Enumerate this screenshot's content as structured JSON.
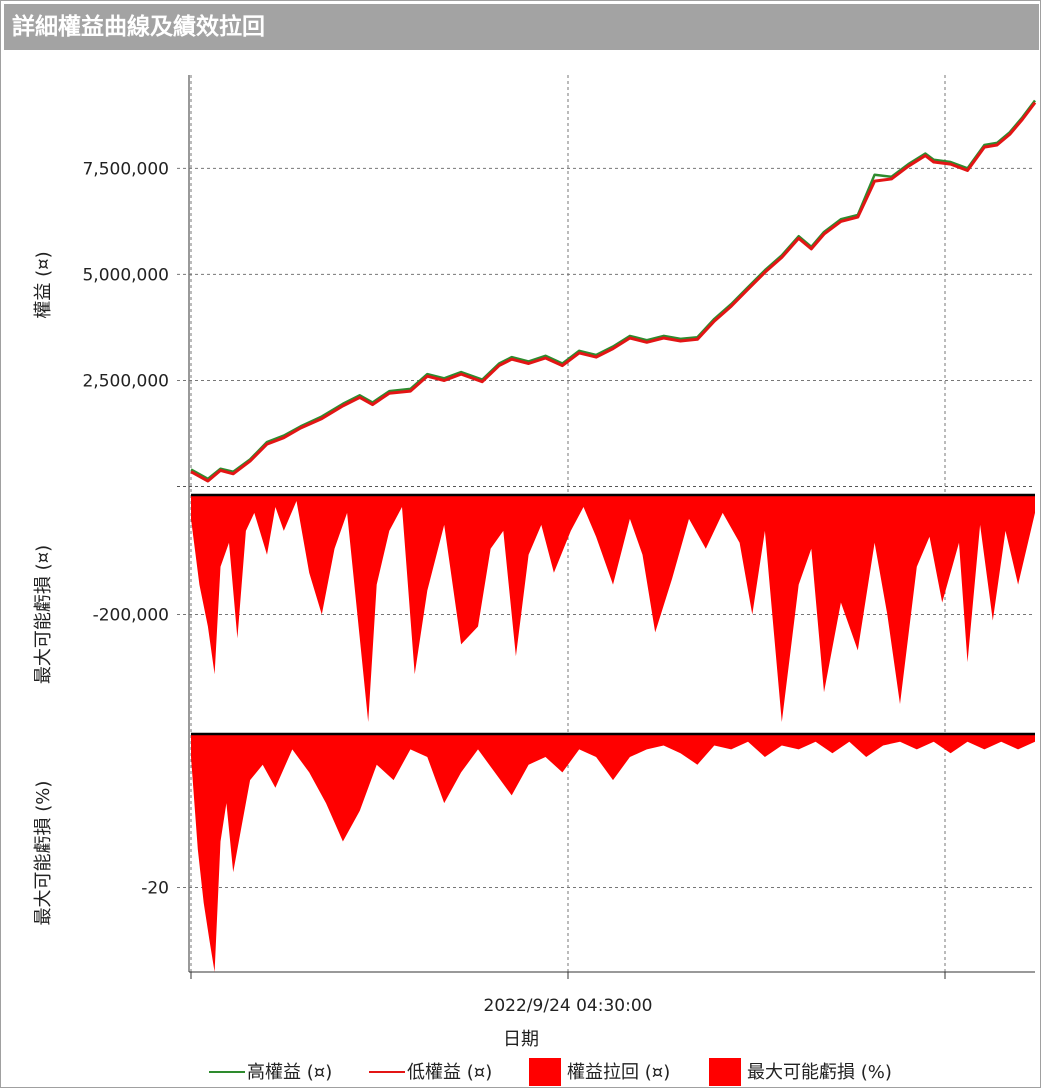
{
  "window": {
    "title": "詳細權益曲線及績效拉回"
  },
  "chart_data": {
    "type": "line",
    "title": "詳細權益曲線及績效拉回",
    "xlabel": "日期",
    "x_tick_labels": [
      "",
      "2022/9/24 04:30:00",
      ""
    ],
    "panels": [
      {
        "name": "equity",
        "type": "line",
        "ylabel": "權益 (¤)",
        "ylim": [
          -200000,
          9700000
        ],
        "ytick_values": [
          2500000,
          5000000,
          7500000
        ],
        "ytick_labels": [
          "2,500,000",
          "5,000,000",
          "7,500,000"
        ],
        "series": [
          {
            "name": "高權益 (¤)",
            "color": "#2e8b2e",
            "x": [
              0,
              0.02,
              0.035,
              0.05,
              0.07,
              0.09,
              0.11,
              0.13,
              0.155,
              0.18,
              0.2,
              0.215,
              0.235,
              0.26,
              0.28,
              0.3,
              0.32,
              0.345,
              0.365,
              0.38,
              0.4,
              0.42,
              0.44,
              0.46,
              0.48,
              0.5,
              0.52,
              0.54,
              0.56,
              0.58,
              0.6,
              0.62,
              0.64,
              0.66,
              0.68,
              0.7,
              0.72,
              0.735,
              0.75,
              0.77,
              0.79,
              0.81,
              0.83,
              0.85,
              0.87,
              0.88,
              0.9,
              0.92,
              0.94,
              0.955,
              0.97,
              0.985,
              1.0
            ],
            "y": [
              400000,
              180000,
              420000,
              350000,
              640000,
              1050000,
              1200000,
              1420000,
              1650000,
              1950000,
              2150000,
              1980000,
              2250000,
              2300000,
              2650000,
              2550000,
              2700000,
              2520000,
              2900000,
              3050000,
              2950000,
              3080000,
              2900000,
              3200000,
              3100000,
              3300000,
              3550000,
              3450000,
              3550000,
              3480000,
              3520000,
              3950000,
              4300000,
              4700000,
              5100000,
              5450000,
              5900000,
              5650000,
              6000000,
              6300000,
              6400000,
              7350000,
              7300000,
              7600000,
              7850000,
              7700000,
              7650000,
              7500000,
              8050000,
              8100000,
              8350000,
              8700000,
              9100000
            ]
          },
          {
            "name": "低權益 (¤)",
            "color": "#e31515",
            "x": [
              0,
              0.02,
              0.035,
              0.05,
              0.07,
              0.09,
              0.11,
              0.13,
              0.155,
              0.18,
              0.2,
              0.215,
              0.235,
              0.26,
              0.28,
              0.3,
              0.32,
              0.345,
              0.365,
              0.38,
              0.4,
              0.42,
              0.44,
              0.46,
              0.48,
              0.5,
              0.52,
              0.54,
              0.56,
              0.58,
              0.6,
              0.62,
              0.64,
              0.66,
              0.68,
              0.7,
              0.72,
              0.735,
              0.75,
              0.77,
              0.79,
              0.81,
              0.83,
              0.85,
              0.87,
              0.88,
              0.9,
              0.92,
              0.94,
              0.955,
              0.97,
              0.985,
              1.0
            ],
            "y": [
              350000,
              130000,
              380000,
              300000,
              600000,
              1000000,
              1150000,
              1380000,
              1600000,
              1900000,
              2100000,
              1930000,
              2200000,
              2250000,
              2600000,
              2500000,
              2650000,
              2470000,
              2850000,
              3000000,
              2900000,
              3030000,
              2850000,
              3150000,
              3050000,
              3250000,
              3500000,
              3400000,
              3500000,
              3430000,
              3470000,
              3900000,
              4250000,
              4650000,
              5050000,
              5400000,
              5850000,
              5600000,
              5950000,
              6250000,
              6350000,
              7200000,
              7250000,
              7550000,
              7800000,
              7650000,
              7600000,
              7450000,
              8000000,
              8050000,
              8300000,
              8650000,
              9050000
            ]
          }
        ]
      },
      {
        "name": "drawdown-value",
        "type": "area",
        "ylabel": "最大可能虧損 (¤)",
        "ylim": [
          -400000,
          0
        ],
        "ytick_values": [
          -200000
        ],
        "ytick_labels": [
          "-200,000"
        ],
        "series": [
          {
            "name": "權益拉回 (¤)",
            "color": "#ff0000",
            "x": [
              0,
              0.01,
              0.02,
              0.028,
              0.035,
              0.045,
              0.055,
              0.065,
              0.075,
              0.09,
              0.1,
              0.11,
              0.125,
              0.14,
              0.155,
              0.17,
              0.185,
              0.2,
              0.21,
              0.22,
              0.235,
              0.25,
              0.265,
              0.28,
              0.3,
              0.32,
              0.34,
              0.355,
              0.37,
              0.385,
              0.4,
              0.415,
              0.43,
              0.45,
              0.465,
              0.48,
              0.5,
              0.52,
              0.535,
              0.55,
              0.57,
              0.59,
              0.61,
              0.63,
              0.65,
              0.665,
              0.68,
              0.7,
              0.72,
              0.735,
              0.75,
              0.77,
              0.79,
              0.81,
              0.825,
              0.84,
              0.86,
              0.875,
              0.89,
              0.91,
              0.92,
              0.935,
              0.95,
              0.965,
              0.98,
              1.0
            ],
            "y": [
              -40000,
              -150000,
              -220000,
              -300000,
              -120000,
              -80000,
              -240000,
              -60000,
              -30000,
              -100000,
              -20000,
              -60000,
              -10000,
              -130000,
              -200000,
              -90000,
              -30000,
              -240000,
              -380000,
              -150000,
              -60000,
              -20000,
              -300000,
              -160000,
              -50000,
              -250000,
              -220000,
              -90000,
              -60000,
              -270000,
              -100000,
              -50000,
              -130000,
              -60000,
              -20000,
              -70000,
              -150000,
              -40000,
              -100000,
              -230000,
              -140000,
              -40000,
              -90000,
              -30000,
              -80000,
              -200000,
              -60000,
              -380000,
              -150000,
              -90000,
              -330000,
              -180000,
              -260000,
              -80000,
              -200000,
              -350000,
              -120000,
              -70000,
              -180000,
              -80000,
              -280000,
              -50000,
              -210000,
              -60000,
              -150000,
              -30000
            ]
          }
        ]
      },
      {
        "name": "drawdown-percent",
        "type": "area",
        "ylabel": "最大可能虧損 (%)",
        "ylim": [
          -31,
          0
        ],
        "ytick_values": [
          -20
        ],
        "ytick_labels": [
          "-20"
        ],
        "series": [
          {
            "name": "最大可能虧損 (%)",
            "color": "#ff0000",
            "x": [
              0,
              0.008,
              0.015,
              0.022,
              0.028,
              0.035,
              0.042,
              0.05,
              0.06,
              0.07,
              0.085,
              0.1,
              0.12,
              0.14,
              0.16,
              0.18,
              0.2,
              0.22,
              0.24,
              0.26,
              0.28,
              0.3,
              0.32,
              0.34,
              0.36,
              0.38,
              0.4,
              0.42,
              0.44,
              0.46,
              0.48,
              0.5,
              0.52,
              0.54,
              0.56,
              0.58,
              0.6,
              0.62,
              0.64,
              0.66,
              0.68,
              0.7,
              0.72,
              0.74,
              0.76,
              0.78,
              0.8,
              0.82,
              0.84,
              0.86,
              0.88,
              0.9,
              0.92,
              0.94,
              0.96,
              0.98,
              1.0
            ],
            "y": [
              -3,
              -15,
              -22,
              -27,
              -31,
              -14,
              -9,
              -18,
              -12,
              -6,
              -4,
              -7,
              -2,
              -5,
              -9,
              -14,
              -10,
              -4,
              -6,
              -2,
              -3,
              -9,
              -5,
              -2,
              -5,
              -8,
              -4,
              -3,
              -5,
              -2,
              -3,
              -6,
              -3,
              -2,
              -1.5,
              -2.5,
              -4,
              -1.5,
              -2,
              -1,
              -3,
              -1.5,
              -2,
              -1,
              -2.5,
              -1,
              -3,
              -1.5,
              -1,
              -2,
              -1,
              -2.5,
              -1,
              -2,
              -1,
              -2,
              -1
            ]
          }
        ]
      }
    ],
    "legend": {
      "position": "bottom",
      "items": [
        {
          "label": "高權益 (¤)",
          "kind": "line",
          "color": "#2e8b2e"
        },
        {
          "label": "低權益 (¤)",
          "kind": "line",
          "color": "#e31515"
        },
        {
          "label": "權益拉回 (¤)",
          "kind": "box",
          "color": "#ff0000"
        },
        {
          "label": "最大可能虧損 (%)",
          "kind": "box",
          "color": "#ff0000"
        }
      ]
    },
    "grid": true
  }
}
